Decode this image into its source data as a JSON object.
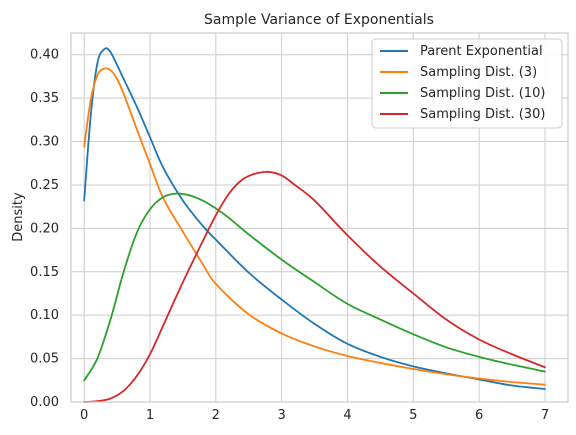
{
  "chart_data": {
    "type": "line",
    "title": "Sample Variance of Exponentials",
    "xlabel": "",
    "ylabel": "Density",
    "xlim": [
      -0.2,
      7.35
    ],
    "ylim": [
      0,
      0.425
    ],
    "grid": true,
    "legend_position": "top-right",
    "x_ticks": [
      0,
      1,
      2,
      3,
      4,
      5,
      6,
      7
    ],
    "y_ticks": [
      0.0,
      0.05,
      0.1,
      0.15,
      0.2,
      0.25,
      0.3,
      0.35,
      0.4
    ],
    "x_tick_labels": [
      "0",
      "1",
      "2",
      "3",
      "4",
      "5",
      "6",
      "7"
    ],
    "y_tick_labels": [
      "0.00",
      "0.05",
      "0.10",
      "0.15",
      "0.20",
      "0.25",
      "0.30",
      "0.35",
      "0.40"
    ],
    "series": [
      {
        "name": "Parent Exponential",
        "color": "#1f77b4",
        "points": [
          [
            0.0,
            0.232
          ],
          [
            0.1,
            0.33
          ],
          [
            0.2,
            0.39
          ],
          [
            0.3,
            0.406
          ],
          [
            0.4,
            0.403
          ],
          [
            0.6,
            0.372
          ],
          [
            0.8,
            0.34
          ],
          [
            1.0,
            0.305
          ],
          [
            1.2,
            0.27
          ],
          [
            1.5,
            0.232
          ],
          [
            1.8,
            0.203
          ],
          [
            2.0,
            0.187
          ],
          [
            2.5,
            0.149
          ],
          [
            3.0,
            0.118
          ],
          [
            3.5,
            0.09
          ],
          [
            4.0,
            0.067
          ],
          [
            4.5,
            0.052
          ],
          [
            5.0,
            0.041
          ],
          [
            5.5,
            0.033
          ],
          [
            6.0,
            0.026
          ],
          [
            6.5,
            0.019
          ],
          [
            7.0,
            0.015
          ]
        ]
      },
      {
        "name": "Sampling Dist. (3)",
        "color": "#ff7f0e",
        "points": [
          [
            0.0,
            0.294
          ],
          [
            0.1,
            0.348
          ],
          [
            0.2,
            0.376
          ],
          [
            0.3,
            0.384
          ],
          [
            0.4,
            0.382
          ],
          [
            0.5,
            0.372
          ],
          [
            0.6,
            0.355
          ],
          [
            0.8,
            0.314
          ],
          [
            1.0,
            0.274
          ],
          [
            1.2,
            0.235
          ],
          [
            1.5,
            0.196
          ],
          [
            1.8,
            0.159
          ],
          [
            2.0,
            0.136
          ],
          [
            2.5,
            0.101
          ],
          [
            3.0,
            0.079
          ],
          [
            3.5,
            0.064
          ],
          [
            4.0,
            0.053
          ],
          [
            4.5,
            0.045
          ],
          [
            5.0,
            0.038
          ],
          [
            5.5,
            0.032
          ],
          [
            6.0,
            0.027
          ],
          [
            6.5,
            0.023
          ],
          [
            7.0,
            0.02
          ]
        ]
      },
      {
        "name": "Sampling Dist. (10)",
        "color": "#2ca02c",
        "points": [
          [
            0.0,
            0.025
          ],
          [
            0.2,
            0.05
          ],
          [
            0.4,
            0.095
          ],
          [
            0.6,
            0.15
          ],
          [
            0.8,
            0.195
          ],
          [
            1.0,
            0.222
          ],
          [
            1.2,
            0.236
          ],
          [
            1.4,
            0.24
          ],
          [
            1.6,
            0.238
          ],
          [
            1.8,
            0.232
          ],
          [
            2.0,
            0.223
          ],
          [
            2.2,
            0.212
          ],
          [
            2.5,
            0.193
          ],
          [
            3.0,
            0.164
          ],
          [
            3.5,
            0.138
          ],
          [
            4.0,
            0.113
          ],
          [
            4.5,
            0.095
          ],
          [
            5.0,
            0.078
          ],
          [
            5.5,
            0.063
          ],
          [
            6.0,
            0.052
          ],
          [
            6.5,
            0.043
          ],
          [
            7.0,
            0.035
          ]
        ]
      },
      {
        "name": "Sampling Dist. (30)",
        "color": "#d62728",
        "points": [
          [
            0.0,
            0.0
          ],
          [
            0.2,
            0.001
          ],
          [
            0.4,
            0.004
          ],
          [
            0.6,
            0.013
          ],
          [
            0.8,
            0.03
          ],
          [
            1.0,
            0.055
          ],
          [
            1.2,
            0.088
          ],
          [
            1.5,
            0.138
          ],
          [
            1.8,
            0.185
          ],
          [
            2.0,
            0.215
          ],
          [
            2.2,
            0.24
          ],
          [
            2.4,
            0.256
          ],
          [
            2.6,
            0.263
          ],
          [
            2.8,
            0.265
          ],
          [
            3.0,
            0.261
          ],
          [
            3.2,
            0.25
          ],
          [
            3.5,
            0.232
          ],
          [
            4.0,
            0.192
          ],
          [
            4.5,
            0.156
          ],
          [
            5.0,
            0.125
          ],
          [
            5.5,
            0.095
          ],
          [
            6.0,
            0.072
          ],
          [
            6.5,
            0.055
          ],
          [
            7.0,
            0.04
          ]
        ]
      }
    ]
  }
}
